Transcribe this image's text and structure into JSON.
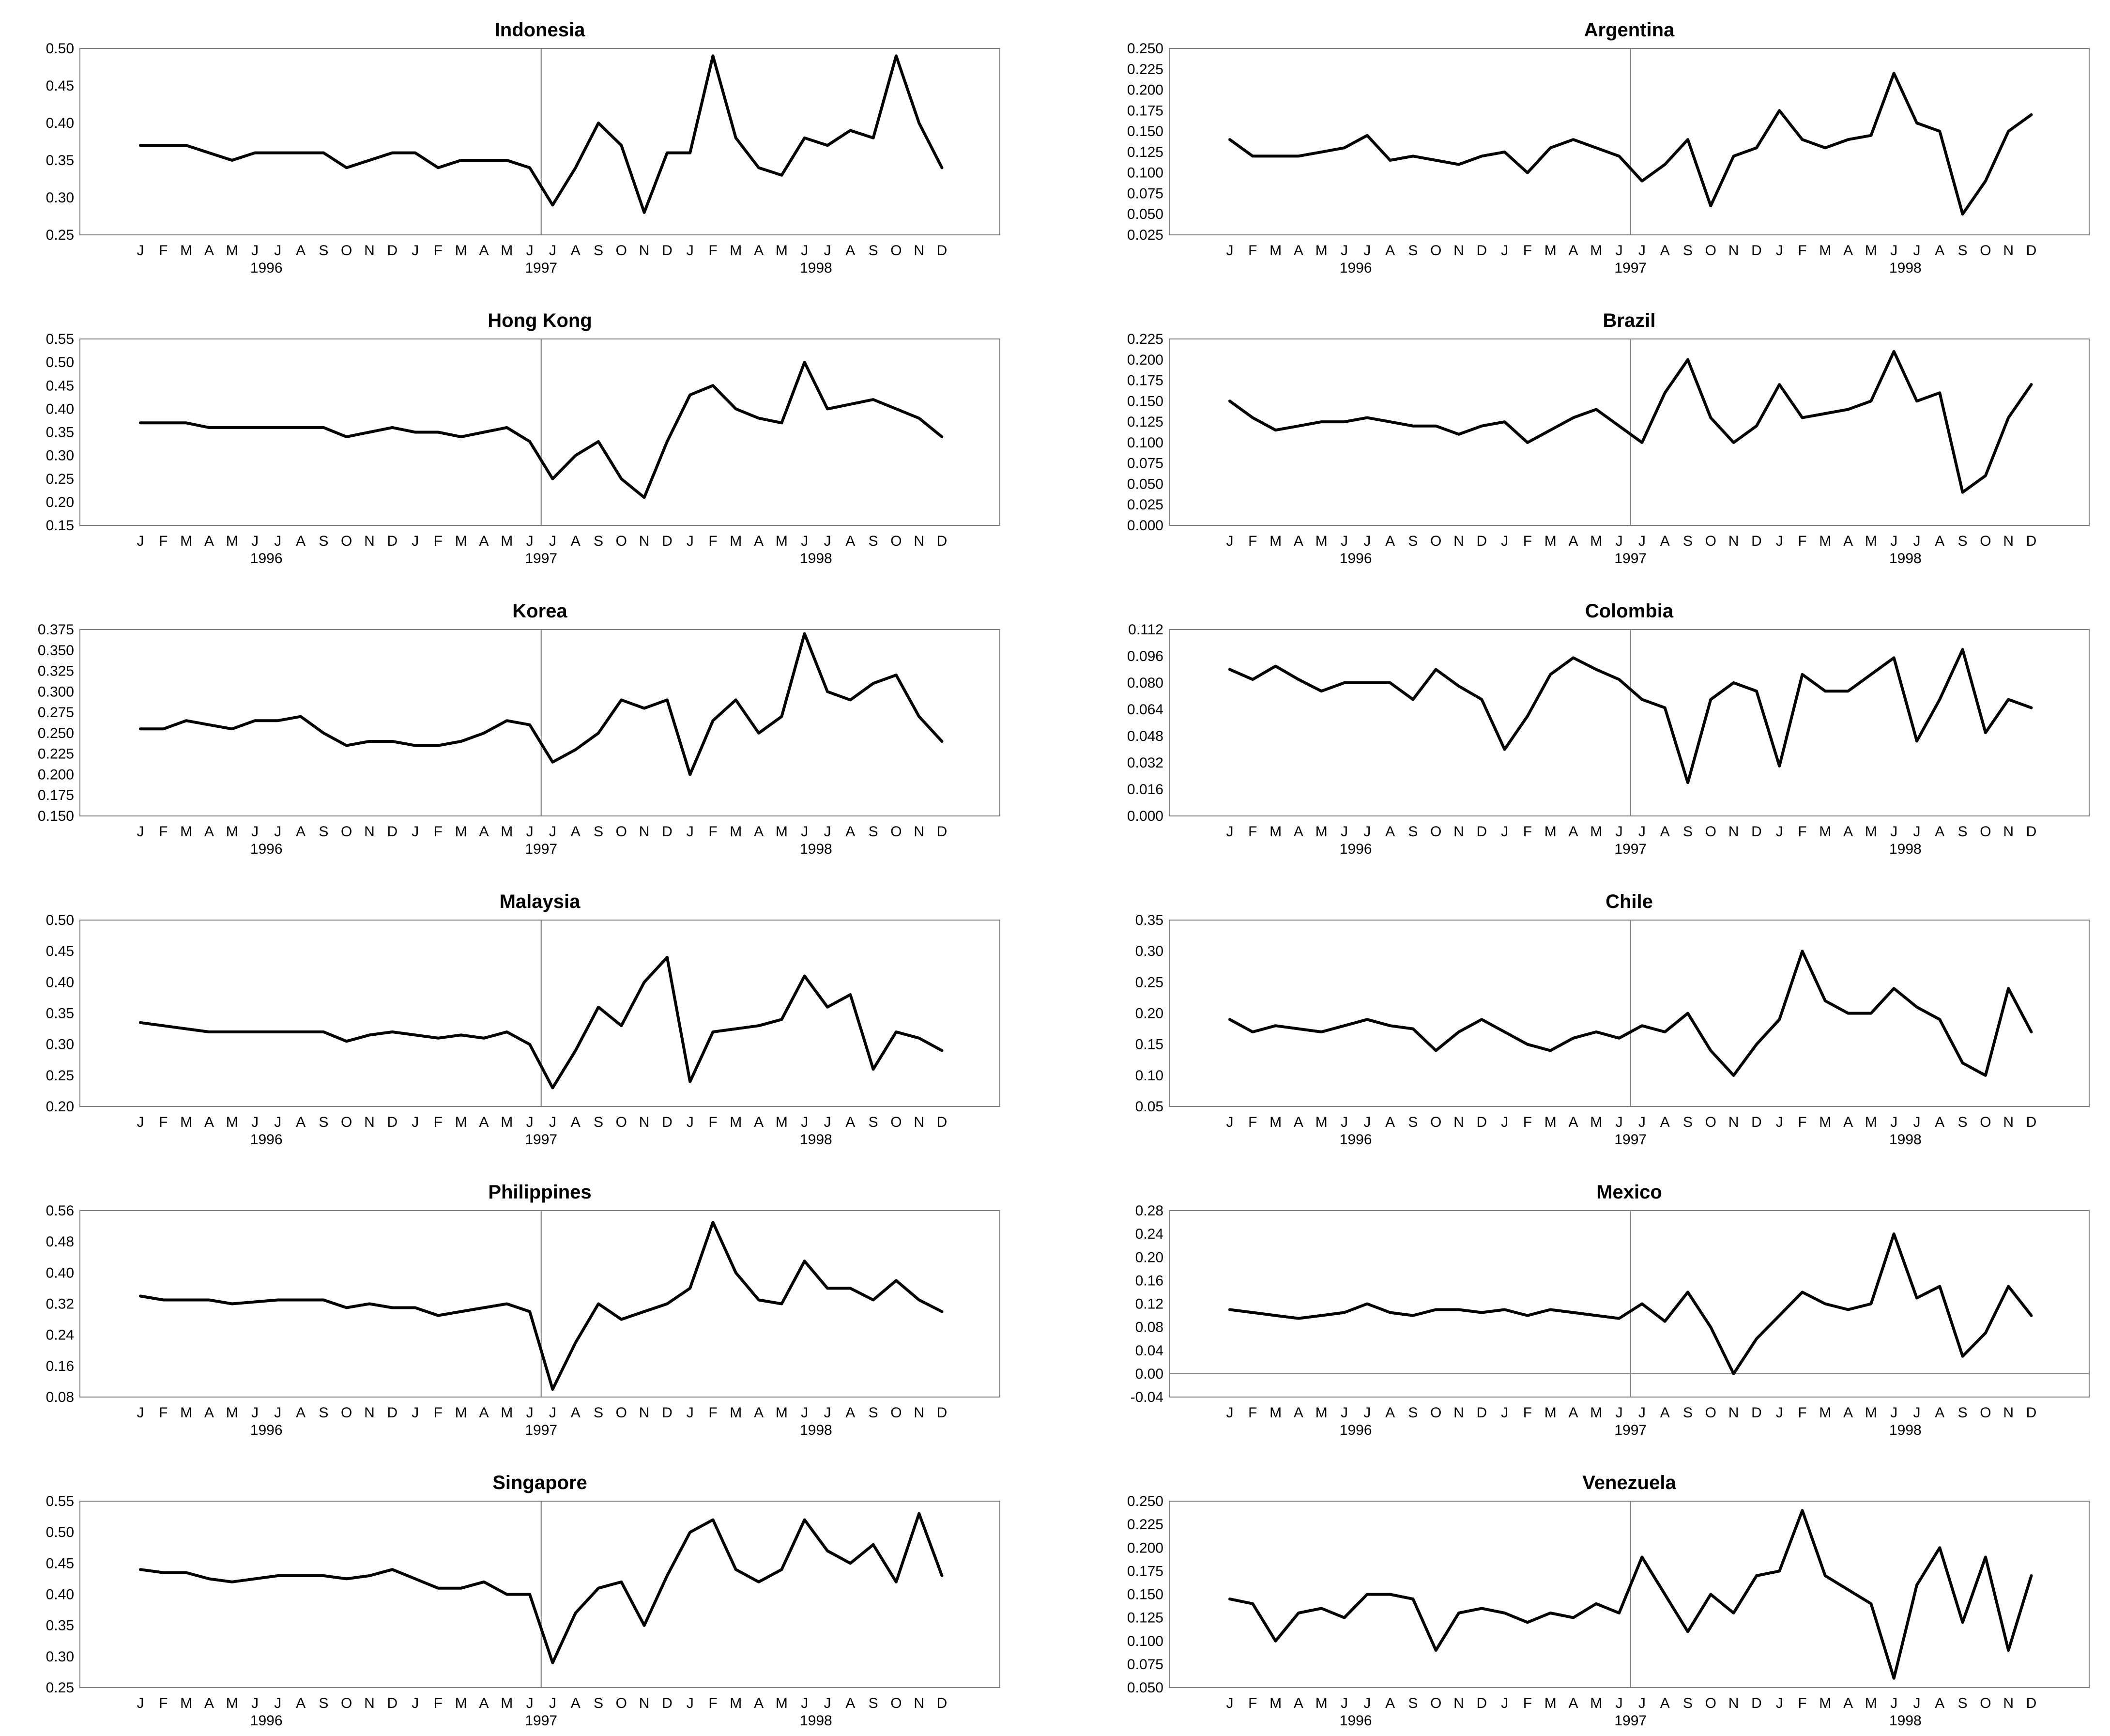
{
  "months": [
    "J",
    "F",
    "M",
    "A",
    "M",
    "J",
    "J",
    "A",
    "S",
    "O",
    "N",
    "D",
    "J",
    "F",
    "M",
    "A",
    "M",
    "J",
    "J",
    "A",
    "S",
    "O",
    "N",
    "D",
    "J",
    "F",
    "M",
    "A",
    "M",
    "J",
    "J",
    "A",
    "S",
    "O",
    "N",
    "D"
  ],
  "years": [
    "1996",
    "1997",
    "1998"
  ],
  "chart_data": [
    {
      "type": "line",
      "title": "Indonesia",
      "ylim": [
        0.25,
        0.5
      ],
      "yticks": [
        "0.25",
        "0.30",
        "0.35",
        "0.40",
        "0.45",
        "0.50"
      ],
      "vline": "1997-07",
      "zero_line": false,
      "x": [
        "1996-01",
        "1996-02",
        "1996-03",
        "1996-04",
        "1996-05",
        "1996-06",
        "1996-07",
        "1996-08",
        "1996-09",
        "1996-10",
        "1996-11",
        "1996-12",
        "1997-01",
        "1997-02",
        "1997-03",
        "1997-04",
        "1997-05",
        "1997-06",
        "1997-07",
        "1997-08",
        "1997-09",
        "1997-10",
        "1997-11",
        "1997-12",
        "1998-01",
        "1998-02",
        "1998-03",
        "1998-04",
        "1998-05",
        "1998-06",
        "1998-07",
        "1998-08",
        "1998-09",
        "1998-10",
        "1998-11",
        "1998-12"
      ],
      "values": [
        0.37,
        0.37,
        0.37,
        0.36,
        0.35,
        0.36,
        0.36,
        0.36,
        0.36,
        0.34,
        0.35,
        0.36,
        0.36,
        0.34,
        0.35,
        0.35,
        0.35,
        0.34,
        0.29,
        0.34,
        0.4,
        0.37,
        0.28,
        0.36,
        0.36,
        0.49,
        0.38,
        0.34,
        0.33,
        0.38,
        0.37,
        0.39,
        0.38,
        0.49,
        0.4,
        0.34
      ]
    },
    {
      "type": "line",
      "title": "Argentina",
      "ylim": [
        0.025,
        0.25
      ],
      "yticks": [
        "0.025",
        "0.050",
        "0.075",
        "0.100",
        "0.125",
        "0.150",
        "0.175",
        "0.200",
        "0.225",
        "0.250"
      ],
      "vline": "1997-07",
      "zero_line": false,
      "x": [
        "1996-01",
        "1996-02",
        "1996-03",
        "1996-04",
        "1996-05",
        "1996-06",
        "1996-07",
        "1996-08",
        "1996-09",
        "1996-10",
        "1996-11",
        "1996-12",
        "1997-01",
        "1997-02",
        "1997-03",
        "1997-04",
        "1997-05",
        "1997-06",
        "1997-07",
        "1997-08",
        "1997-09",
        "1997-10",
        "1997-11",
        "1997-12",
        "1998-01",
        "1998-02",
        "1998-03",
        "1998-04",
        "1998-05",
        "1998-06",
        "1998-07",
        "1998-08",
        "1998-09",
        "1998-10",
        "1998-11",
        "1998-12"
      ],
      "values": [
        0.14,
        0.12,
        0.12,
        0.12,
        0.125,
        0.13,
        0.145,
        0.115,
        0.12,
        0.115,
        0.11,
        0.12,
        0.125,
        0.1,
        0.13,
        0.14,
        0.13,
        0.12,
        0.09,
        0.11,
        0.14,
        0.06,
        0.12,
        0.13,
        0.175,
        0.14,
        0.13,
        0.14,
        0.145,
        0.22,
        0.16,
        0.15,
        0.05,
        0.09,
        0.15,
        0.17
      ]
    },
    {
      "type": "line",
      "title": "Hong Kong",
      "ylim": [
        0.15,
        0.55
      ],
      "yticks": [
        "0.15",
        "0.20",
        "0.25",
        "0.30",
        "0.35",
        "0.40",
        "0.45",
        "0.50",
        "0.55"
      ],
      "vline": "1997-07",
      "zero_line": false,
      "x": [
        "1996-01",
        "1996-02",
        "1996-03",
        "1996-04",
        "1996-05",
        "1996-06",
        "1996-07",
        "1996-08",
        "1996-09",
        "1996-10",
        "1996-11",
        "1996-12",
        "1997-01",
        "1997-02",
        "1997-03",
        "1997-04",
        "1997-05",
        "1997-06",
        "1997-07",
        "1997-08",
        "1997-09",
        "1997-10",
        "1997-11",
        "1997-12",
        "1998-01",
        "1998-02",
        "1998-03",
        "1998-04",
        "1998-05",
        "1998-06",
        "1998-07",
        "1998-08",
        "1998-09",
        "1998-10",
        "1998-11",
        "1998-12"
      ],
      "values": [
        0.37,
        0.37,
        0.37,
        0.36,
        0.36,
        0.36,
        0.36,
        0.36,
        0.36,
        0.34,
        0.35,
        0.36,
        0.35,
        0.35,
        0.34,
        0.35,
        0.36,
        0.33,
        0.25,
        0.3,
        0.33,
        0.25,
        0.21,
        0.33,
        0.43,
        0.45,
        0.4,
        0.38,
        0.37,
        0.5,
        0.4,
        0.41,
        0.42,
        0.4,
        0.38,
        0.34
      ]
    },
    {
      "type": "line",
      "title": "Brazil",
      "ylim": [
        0.0,
        0.225
      ],
      "yticks": [
        "0.000",
        "0.025",
        "0.050",
        "0.075",
        "0.100",
        "0.125",
        "0.150",
        "0.175",
        "0.200",
        "0.225"
      ],
      "vline": "1997-07",
      "zero_line": false,
      "x": [
        "1996-01",
        "1996-02",
        "1996-03",
        "1996-04",
        "1996-05",
        "1996-06",
        "1996-07",
        "1996-08",
        "1996-09",
        "1996-10",
        "1996-11",
        "1996-12",
        "1997-01",
        "1997-02",
        "1997-03",
        "1997-04",
        "1997-05",
        "1997-06",
        "1997-07",
        "1997-08",
        "1997-09",
        "1997-10",
        "1997-11",
        "1997-12",
        "1998-01",
        "1998-02",
        "1998-03",
        "1998-04",
        "1998-05",
        "1998-06",
        "1998-07",
        "1998-08",
        "1998-09",
        "1998-10",
        "1998-11",
        "1998-12"
      ],
      "values": [
        0.15,
        0.13,
        0.115,
        0.12,
        0.125,
        0.125,
        0.13,
        0.125,
        0.12,
        0.12,
        0.11,
        0.12,
        0.125,
        0.1,
        0.115,
        0.13,
        0.14,
        0.12,
        0.1,
        0.16,
        0.2,
        0.13,
        0.1,
        0.12,
        0.17,
        0.13,
        0.135,
        0.14,
        0.15,
        0.21,
        0.15,
        0.16,
        0.04,
        0.06,
        0.13,
        0.17
      ]
    },
    {
      "type": "line",
      "title": "Korea",
      "ylim": [
        0.15,
        0.375
      ],
      "yticks": [
        "0.150",
        "0.175",
        "0.200",
        "0.225",
        "0.250",
        "0.275",
        "0.300",
        "0.325",
        "0.350",
        "0.375"
      ],
      "vline": "1997-07",
      "zero_line": false,
      "x": [
        "1996-01",
        "1996-02",
        "1996-03",
        "1996-04",
        "1996-05",
        "1996-06",
        "1996-07",
        "1996-08",
        "1996-09",
        "1996-10",
        "1996-11",
        "1996-12",
        "1997-01",
        "1997-02",
        "1997-03",
        "1997-04",
        "1997-05",
        "1997-06",
        "1997-07",
        "1997-08",
        "1997-09",
        "1997-10",
        "1997-11",
        "1997-12",
        "1998-01",
        "1998-02",
        "1998-03",
        "1998-04",
        "1998-05",
        "1998-06",
        "1998-07",
        "1998-08",
        "1998-09",
        "1998-10",
        "1998-11",
        "1998-12"
      ],
      "values": [
        0.255,
        0.255,
        0.265,
        0.26,
        0.255,
        0.265,
        0.265,
        0.27,
        0.25,
        0.235,
        0.24,
        0.24,
        0.235,
        0.235,
        0.24,
        0.25,
        0.265,
        0.26,
        0.215,
        0.23,
        0.25,
        0.29,
        0.28,
        0.29,
        0.2,
        0.265,
        0.29,
        0.25,
        0.27,
        0.37,
        0.3,
        0.29,
        0.31,
        0.32,
        0.27,
        0.24
      ]
    },
    {
      "type": "line",
      "title": "Colombia",
      "ylim": [
        0.0,
        0.112
      ],
      "yticks": [
        "0.000",
        "0.016",
        "0.032",
        "0.048",
        "0.064",
        "0.080",
        "0.096",
        "0.112"
      ],
      "vline": "1997-07",
      "zero_line": false,
      "x": [
        "1996-01",
        "1996-02",
        "1996-03",
        "1996-04",
        "1996-05",
        "1996-06",
        "1996-07",
        "1996-08",
        "1996-09",
        "1996-10",
        "1996-11",
        "1996-12",
        "1997-01",
        "1997-02",
        "1997-03",
        "1997-04",
        "1997-05",
        "1997-06",
        "1997-07",
        "1997-08",
        "1997-09",
        "1997-10",
        "1997-11",
        "1997-12",
        "1998-01",
        "1998-02",
        "1998-03",
        "1998-04",
        "1998-05",
        "1998-06",
        "1998-07",
        "1998-08",
        "1998-09",
        "1998-10",
        "1998-11",
        "1998-12"
      ],
      "values": [
        0.088,
        0.082,
        0.09,
        0.082,
        0.075,
        0.08,
        0.08,
        0.08,
        0.07,
        0.088,
        0.078,
        0.07,
        0.04,
        0.06,
        0.085,
        0.095,
        0.088,
        0.082,
        0.07,
        0.065,
        0.02,
        0.07,
        0.08,
        0.075,
        0.03,
        0.085,
        0.075,
        0.075,
        0.085,
        0.095,
        0.045,
        0.07,
        0.1,
        0.05,
        0.07,
        0.065
      ]
    },
    {
      "type": "line",
      "title": "Malaysia",
      "ylim": [
        0.2,
        0.5
      ],
      "yticks": [
        "0.20",
        "0.25",
        "0.30",
        "0.35",
        "0.40",
        "0.45",
        "0.50"
      ],
      "vline": "1997-07",
      "zero_line": false,
      "x": [
        "1996-01",
        "1996-02",
        "1996-03",
        "1996-04",
        "1996-05",
        "1996-06",
        "1996-07",
        "1996-08",
        "1996-09",
        "1996-10",
        "1996-11",
        "1996-12",
        "1997-01",
        "1997-02",
        "1997-03",
        "1997-04",
        "1997-05",
        "1997-06",
        "1997-07",
        "1997-08",
        "1997-09",
        "1997-10",
        "1997-11",
        "1997-12",
        "1998-01",
        "1998-02",
        "1998-03",
        "1998-04",
        "1998-05",
        "1998-06",
        "1998-07",
        "1998-08",
        "1998-09",
        "1998-10",
        "1998-11",
        "1998-12"
      ],
      "values": [
        0.335,
        0.33,
        0.325,
        0.32,
        0.32,
        0.32,
        0.32,
        0.32,
        0.32,
        0.305,
        0.315,
        0.32,
        0.315,
        0.31,
        0.315,
        0.31,
        0.32,
        0.3,
        0.23,
        0.29,
        0.36,
        0.33,
        0.4,
        0.44,
        0.24,
        0.32,
        0.325,
        0.33,
        0.34,
        0.41,
        0.36,
        0.38,
        0.26,
        0.32,
        0.31,
        0.29
      ]
    },
    {
      "type": "line",
      "title": "Chile",
      "ylim": [
        0.05,
        0.35
      ],
      "yticks": [
        "0.05",
        "0.10",
        "0.15",
        "0.20",
        "0.25",
        "0.30",
        "0.35"
      ],
      "vline": "1997-07",
      "zero_line": false,
      "x": [
        "1996-01",
        "1996-02",
        "1996-03",
        "1996-04",
        "1996-05",
        "1996-06",
        "1996-07",
        "1996-08",
        "1996-09",
        "1996-10",
        "1996-11",
        "1996-12",
        "1997-01",
        "1997-02",
        "1997-03",
        "1997-04",
        "1997-05",
        "1997-06",
        "1997-07",
        "1997-08",
        "1997-09",
        "1997-10",
        "1997-11",
        "1997-12",
        "1998-01",
        "1998-02",
        "1998-03",
        "1998-04",
        "1998-05",
        "1998-06",
        "1998-07",
        "1998-08",
        "1998-09",
        "1998-10",
        "1998-11",
        "1998-12"
      ],
      "values": [
        0.19,
        0.17,
        0.18,
        0.175,
        0.17,
        0.18,
        0.19,
        0.18,
        0.175,
        0.14,
        0.17,
        0.19,
        0.17,
        0.15,
        0.14,
        0.16,
        0.17,
        0.16,
        0.18,
        0.17,
        0.2,
        0.14,
        0.1,
        0.15,
        0.19,
        0.3,
        0.22,
        0.2,
        0.2,
        0.24,
        0.21,
        0.19,
        0.12,
        0.1,
        0.24,
        0.17
      ]
    },
    {
      "type": "line",
      "title": "Philippines",
      "ylim": [
        0.08,
        0.56
      ],
      "yticks": [
        "0.08",
        "0.16",
        "0.24",
        "0.32",
        "0.40",
        "0.48",
        "0.56"
      ],
      "vline": "1997-07",
      "zero_line": false,
      "x": [
        "1996-01",
        "1996-02",
        "1996-03",
        "1996-04",
        "1996-05",
        "1996-06",
        "1996-07",
        "1996-08",
        "1996-09",
        "1996-10",
        "1996-11",
        "1996-12",
        "1997-01",
        "1997-02",
        "1997-03",
        "1997-04",
        "1997-05",
        "1997-06",
        "1997-07",
        "1997-08",
        "1997-09",
        "1997-10",
        "1997-11",
        "1997-12",
        "1998-01",
        "1998-02",
        "1998-03",
        "1998-04",
        "1998-05",
        "1998-06",
        "1998-07",
        "1998-08",
        "1998-09",
        "1998-10",
        "1998-11",
        "1998-12"
      ],
      "values": [
        0.34,
        0.33,
        0.33,
        0.33,
        0.32,
        0.325,
        0.33,
        0.33,
        0.33,
        0.31,
        0.32,
        0.31,
        0.31,
        0.29,
        0.3,
        0.31,
        0.32,
        0.3,
        0.1,
        0.22,
        0.32,
        0.28,
        0.3,
        0.32,
        0.36,
        0.53,
        0.4,
        0.33,
        0.32,
        0.43,
        0.36,
        0.36,
        0.33,
        0.38,
        0.33,
        0.3
      ]
    },
    {
      "type": "line",
      "title": "Mexico",
      "ylim": [
        -0.04,
        0.28
      ],
      "yticks": [
        "-0.04",
        "0.00",
        "0.04",
        "0.08",
        "0.12",
        "0.16",
        "0.20",
        "0.24",
        "0.28"
      ],
      "vline": "1997-07",
      "zero_line": true,
      "x": [
        "1996-01",
        "1996-02",
        "1996-03",
        "1996-04",
        "1996-05",
        "1996-06",
        "1996-07",
        "1996-08",
        "1996-09",
        "1996-10",
        "1996-11",
        "1996-12",
        "1997-01",
        "1997-02",
        "1997-03",
        "1997-04",
        "1997-05",
        "1997-06",
        "1997-07",
        "1997-08",
        "1997-09",
        "1997-10",
        "1997-11",
        "1997-12",
        "1998-01",
        "1998-02",
        "1998-03",
        "1998-04",
        "1998-05",
        "1998-06",
        "1998-07",
        "1998-08",
        "1998-09",
        "1998-10",
        "1998-11",
        "1998-12"
      ],
      "values": [
        0.11,
        0.105,
        0.1,
        0.095,
        0.1,
        0.105,
        0.12,
        0.105,
        0.1,
        0.11,
        0.11,
        0.105,
        0.11,
        0.1,
        0.11,
        0.105,
        0.1,
        0.095,
        0.12,
        0.09,
        0.14,
        0.08,
        0.0,
        0.06,
        0.1,
        0.14,
        0.12,
        0.11,
        0.12,
        0.24,
        0.13,
        0.15,
        0.03,
        0.07,
        0.15,
        0.1
      ]
    },
    {
      "type": "line",
      "title": "Singapore",
      "ylim": [
        0.25,
        0.55
      ],
      "yticks": [
        "0.25",
        "0.30",
        "0.35",
        "0.40",
        "0.45",
        "0.50",
        "0.55"
      ],
      "vline": "1997-07",
      "zero_line": false,
      "x": [
        "1996-01",
        "1996-02",
        "1996-03",
        "1996-04",
        "1996-05",
        "1996-06",
        "1996-07",
        "1996-08",
        "1996-09",
        "1996-10",
        "1996-11",
        "1996-12",
        "1997-01",
        "1997-02",
        "1997-03",
        "1997-04",
        "1997-05",
        "1997-06",
        "1997-07",
        "1997-08",
        "1997-09",
        "1997-10",
        "1997-11",
        "1997-12",
        "1998-01",
        "1998-02",
        "1998-03",
        "1998-04",
        "1998-05",
        "1998-06",
        "1998-07",
        "1998-08",
        "1998-09",
        "1998-10",
        "1998-11",
        "1998-12"
      ],
      "values": [
        0.44,
        0.435,
        0.435,
        0.425,
        0.42,
        0.425,
        0.43,
        0.43,
        0.43,
        0.425,
        0.43,
        0.44,
        0.425,
        0.41,
        0.41,
        0.42,
        0.4,
        0.4,
        0.29,
        0.37,
        0.41,
        0.42,
        0.35,
        0.43,
        0.5,
        0.52,
        0.44,
        0.42,
        0.44,
        0.52,
        0.47,
        0.45,
        0.48,
        0.42,
        0.53,
        0.43
      ]
    },
    {
      "type": "line",
      "title": "Venezuela",
      "ylim": [
        0.05,
        0.25
      ],
      "yticks": [
        "0.050",
        "0.075",
        "0.100",
        "0.125",
        "0.150",
        "0.175",
        "0.200",
        "0.225",
        "0.250"
      ],
      "vline": "1997-07",
      "zero_line": false,
      "x": [
        "1996-01",
        "1996-02",
        "1996-03",
        "1996-04",
        "1996-05",
        "1996-06",
        "1996-07",
        "1996-08",
        "1996-09",
        "1996-10",
        "1996-11",
        "1996-12",
        "1997-01",
        "1997-02",
        "1997-03",
        "1997-04",
        "1997-05",
        "1997-06",
        "1997-07",
        "1997-08",
        "1997-09",
        "1997-10",
        "1997-11",
        "1997-12",
        "1998-01",
        "1998-02",
        "1998-03",
        "1998-04",
        "1998-05",
        "1998-06",
        "1998-07",
        "1998-08",
        "1998-09",
        "1998-10",
        "1998-11",
        "1998-12"
      ],
      "values": [
        0.145,
        0.14,
        0.1,
        0.13,
        0.135,
        0.125,
        0.15,
        0.15,
        0.145,
        0.09,
        0.13,
        0.135,
        0.13,
        0.12,
        0.13,
        0.125,
        0.14,
        0.13,
        0.19,
        0.15,
        0.11,
        0.15,
        0.13,
        0.17,
        0.175,
        0.24,
        0.17,
        0.155,
        0.14,
        0.06,
        0.16,
        0.2,
        0.12,
        0.19,
        0.09,
        0.17
      ]
    }
  ]
}
